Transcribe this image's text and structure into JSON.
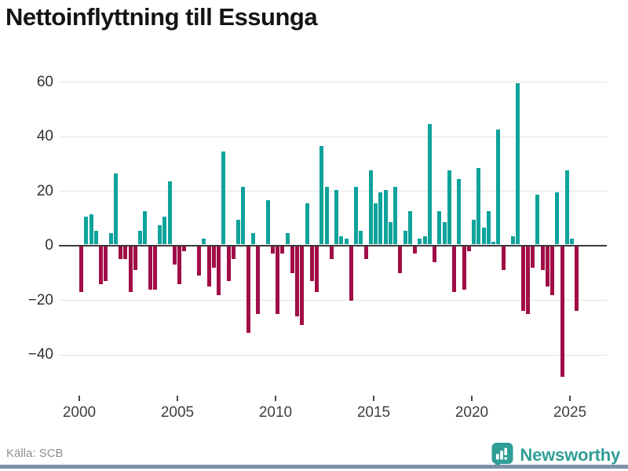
{
  "title": "Nettoinflyttning till Essunga",
  "source_label": "Källa: SCB",
  "brand": {
    "name": "Newsworthy"
  },
  "colors": {
    "positive_bar": "#0ea39b",
    "negative_bar": "#a10d47",
    "brand_teal": "#2f9e96",
    "bottom_strip": "#7e90a8"
  },
  "chart_data": {
    "type": "bar",
    "title": "Nettoinflyttning till Essunga",
    "frequency": "quarterly",
    "start_year": 2000,
    "start_quarter": 1,
    "unit": "persons (net migration per quarter)",
    "values": [
      -17,
      10,
      11,
      5,
      -14,
      -13,
      4,
      26,
      -5,
      -5,
      -17,
      -9,
      5,
      12,
      -16,
      -16,
      7,
      10,
      23,
      -7,
      -14,
      -2,
      0,
      0,
      -11,
      2,
      -15,
      -8,
      -18,
      34,
      -13,
      -5,
      9,
      21,
      -32,
      4,
      -25,
      0,
      16,
      -3,
      -25,
      -3,
      4,
      -10,
      -26,
      -29,
      15,
      -13,
      -17,
      36,
      21,
      -5,
      20,
      3,
      2,
      -20,
      21,
      5,
      -5,
      27,
      15,
      19,
      20,
      8,
      21,
      -10,
      5,
      12,
      -3,
      2,
      3,
      44,
      -6,
      12,
      8,
      27,
      -17,
      24,
      -16,
      -2,
      9,
      28,
      6,
      12,
      1,
      42,
      -9,
      0,
      3,
      59,
      -24,
      -25,
      -8,
      18,
      -9,
      -15,
      -18,
      19,
      -48,
      27,
      2,
      -24
    ],
    "x_tick_labels": [
      "2000",
      "2005",
      "2010",
      "2015",
      "2020",
      "2025"
    ],
    "y_tick_labels": [
      "60",
      "40",
      "20",
      "0",
      "−20",
      "−40"
    ],
    "y_ticks": [
      60,
      40,
      20,
      0,
      -20,
      -40
    ],
    "ylim": [
      -52,
      66
    ],
    "grid": true,
    "legend": "none",
    "positive_color": "#0ea39b",
    "negative_color": "#a10d47"
  }
}
